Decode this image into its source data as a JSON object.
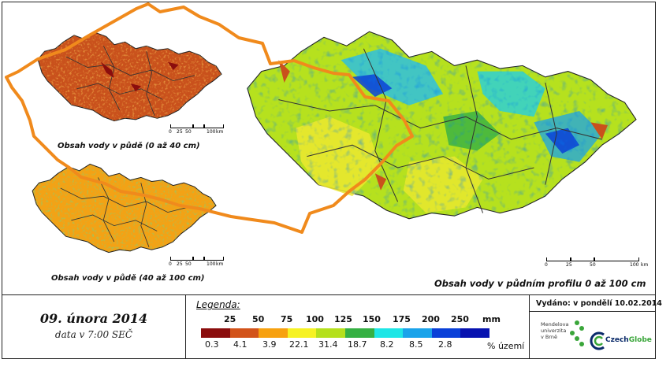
{
  "captions": {
    "top_inset": "Obsah vody v půdě (0 až 40 cm)",
    "bottom_inset": "Obsah vody v půdě (40 až 100 cm)",
    "main": "Obsah vody v půdním profilu 0 až 100 cm"
  },
  "scalebar": {
    "labels": [
      "0",
      "25",
      "50",
      "100"
    ],
    "unit": "km"
  },
  "date": {
    "title": "09. února 2014",
    "subtitle": "data v 7:00 SEČ"
  },
  "legend": {
    "title": "Legenda:",
    "unit": "mm",
    "share_label": "% území",
    "thresholds": [
      "25",
      "50",
      "75",
      "100",
      "125",
      "150",
      "175",
      "200",
      "250"
    ],
    "shares": [
      "0.3",
      "4.1",
      "3.9",
      "22.1",
      "31.4",
      "18.7",
      "8.2",
      "8.5",
      "2.8"
    ],
    "colors": [
      "#8b0d0d",
      "#d2531a",
      "#f7a10f",
      "#f6f224",
      "#b5e01c",
      "#35b043",
      "#1ee6e6",
      "#1aa3ea",
      "#0a40d8",
      "#0712b0"
    ]
  },
  "issue": {
    "issued": "Vydáno: v pondělí 10.02.2014",
    "mendel": [
      "Mendelova",
      "univerzita",
      "v Brně"
    ],
    "czechglobe": [
      "Czech",
      "Globe"
    ]
  }
}
